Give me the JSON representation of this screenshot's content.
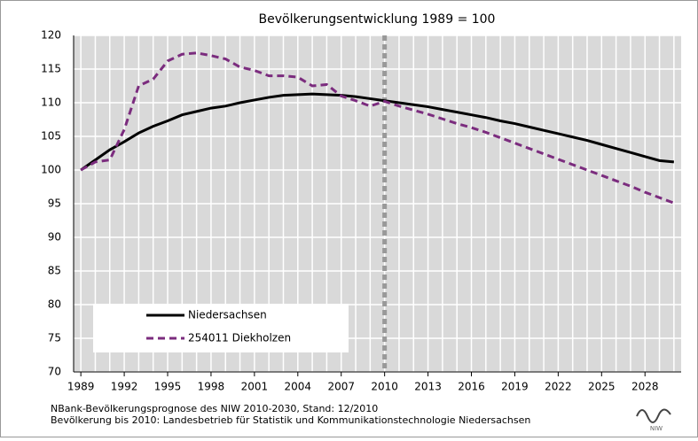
{
  "chart_data": {
    "type": "line",
    "title": "Bevölkerungsentwicklung 1989 = 100",
    "x": [
      1989,
      1990,
      1991,
      1992,
      1993,
      1994,
      1995,
      1996,
      1997,
      1998,
      1999,
      2000,
      2001,
      2002,
      2003,
      2004,
      2005,
      2006,
      2007,
      2008,
      2009,
      2010,
      2011,
      2012,
      2013,
      2014,
      2015,
      2016,
      2017,
      2018,
      2019,
      2020,
      2021,
      2022,
      2023,
      2024,
      2025,
      2026,
      2027,
      2028,
      2029,
      2030
    ],
    "series": [
      {
        "name": "Niedersachsen",
        "color": "#000000",
        "dash": false,
        "values": [
          100,
          101.5,
          103,
          104.2,
          105.5,
          106.5,
          107.3,
          108.2,
          108.7,
          109.2,
          109.5,
          110,
          110.4,
          110.8,
          111.1,
          111.2,
          111.3,
          111.2,
          111.1,
          110.9,
          110.6,
          110.3,
          110,
          109.7,
          109.4,
          109,
          108.6,
          108.2,
          107.8,
          107.3,
          106.9,
          106.4,
          105.9,
          105.4,
          104.9,
          104.4,
          103.8,
          103.2,
          102.6,
          102,
          101.4,
          101.2
        ]
      },
      {
        "name": "254011  Diekholzen",
        "color": "#7b2c7e",
        "dash": true,
        "values": [
          100,
          101.2,
          101.5,
          106,
          112.5,
          113.5,
          116.2,
          117.2,
          117.4,
          117,
          116.5,
          115.3,
          114.8,
          114,
          114,
          113.8,
          112.5,
          112.7,
          111,
          110.3,
          109.5,
          110.2,
          109.5,
          108.9,
          108.3,
          107.6,
          106.9,
          106.3,
          105.6,
          104.8,
          104,
          103.2,
          102.4,
          101.6,
          100.8,
          100,
          99.2,
          98.4,
          97.6,
          96.7,
          95.9,
          95.1
        ]
      }
    ],
    "xlim": [
      1988.5,
      2030.5
    ],
    "xticks": [
      1989,
      1992,
      1995,
      1998,
      2001,
      2004,
      2007,
      2010,
      2013,
      2016,
      2019,
      2022,
      2025,
      2028
    ],
    "ylim": [
      70,
      120
    ],
    "yticks": [
      70,
      75,
      80,
      85,
      90,
      95,
      100,
      105,
      110,
      115,
      120
    ],
    "grid": true,
    "vline": 2010,
    "legend": "lower left",
    "footnotes": [
      "NBank-Bevölkerungsprognose des NIW 2010-2030, Stand: 12/2010",
      "Bevölkerung bis 2010: Landesbetrieb für Statistik und Kommunikationstechnologie Niedersachsen"
    ],
    "logo": "NIW"
  }
}
